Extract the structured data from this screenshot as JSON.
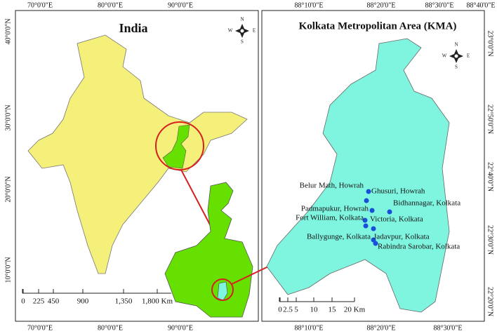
{
  "left_map": {
    "title": "India",
    "top_labels": [
      "70°0'0\"E",
      "80°0'0\"E",
      "90°0'0\"E"
    ],
    "bottom_labels": [
      "70°0'0\"E",
      "80°0'0\"E",
      "90°0'0\"E"
    ],
    "side_labels": [
      "40°0'0\"N",
      "30°0'0\"N",
      "20°0'0\"N",
      "10°0'0\"N"
    ],
    "scale_labels": [
      "0",
      "225",
      "450",
      "900",
      "1,350",
      "1,800 Km"
    ]
  },
  "right_map": {
    "title": "Kolkata Metropolitan Area (KMA)",
    "top_labels": [
      "88°10'0\"E",
      "88°20'0\"E",
      "88°30'0\"E",
      "88°40'0\"E"
    ],
    "bottom_labels": [
      "88°10'0\"E",
      "88°20'0\"E",
      "88°30'0\"E"
    ],
    "side_labels": [
      "23°0'0\"N",
      "22°50'0\"N",
      "22°40'0\"N",
      "22°30'0\"N",
      "22°20'0\"N"
    ],
    "scale_labels": [
      "0",
      "2.5",
      "5",
      "10",
      "15",
      "20 Km"
    ],
    "stations": [
      "Belur Math, Howrah",
      "Ghusuri, Howrah",
      "Bidhannagar, Kolkata",
      "Padmapukur, Howrah",
      "Fort William, Kolkata",
      "Victoria, Kolkata",
      "Ballygunge, Kolkata",
      "Jadavpur, Kolkata",
      "Rabindra Sarobar, Kolkata"
    ]
  },
  "compass": {
    "n": "N",
    "s": "S",
    "e": "E",
    "w": "W"
  }
}
